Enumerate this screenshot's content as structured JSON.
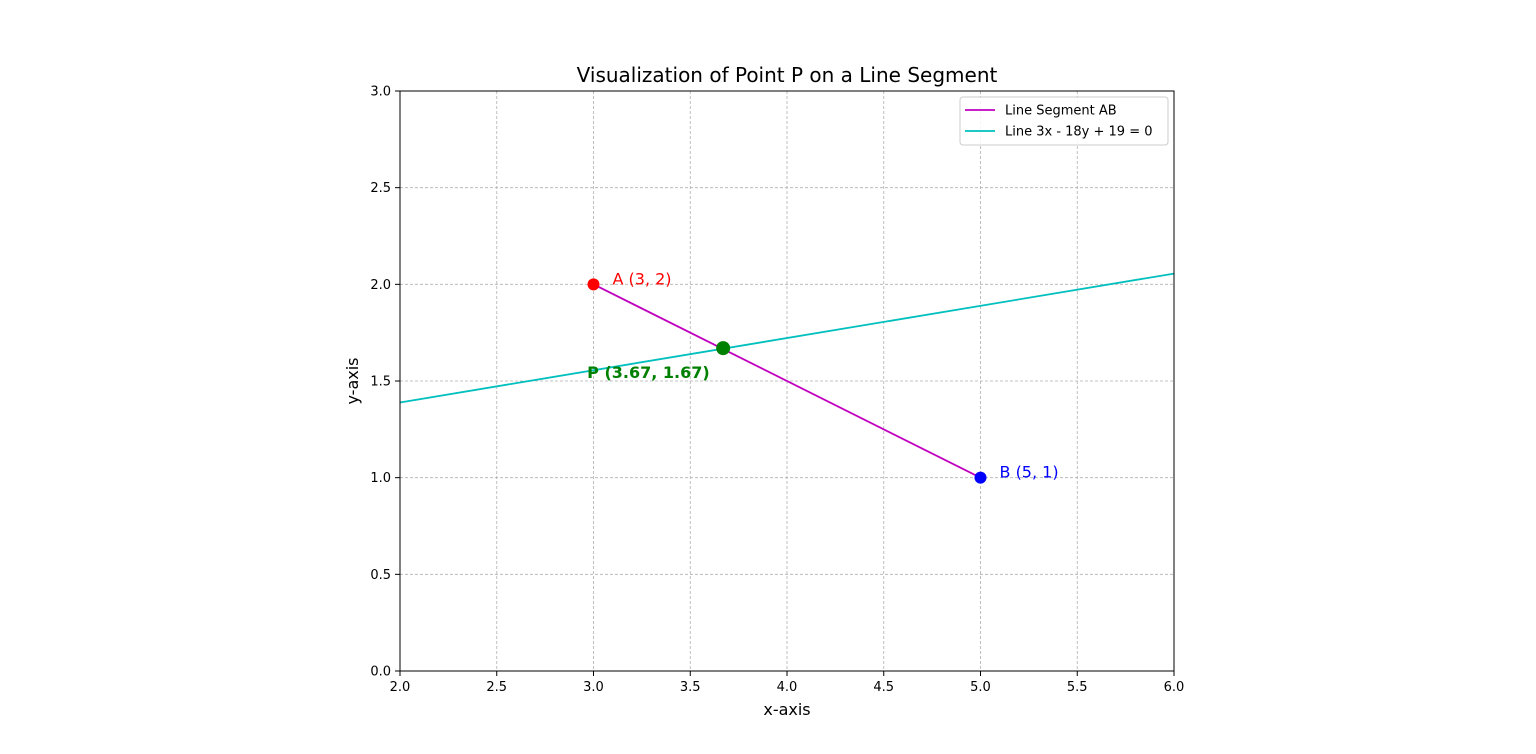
{
  "chart_data": {
    "type": "line",
    "title": "Visualization of Point P on a Line Segment",
    "xlabel": "x-axis",
    "ylabel": "y-axis",
    "xlim": [
      2.0,
      6.0
    ],
    "ylim": [
      0.0,
      3.0
    ],
    "xticks": [
      2.0,
      2.5,
      3.0,
      3.5,
      4.0,
      4.5,
      5.0,
      5.5,
      6.0
    ],
    "yticks": [
      0.0,
      0.5,
      1.0,
      1.5,
      2.0,
      2.5,
      3.0
    ],
    "xtick_labels": [
      "2.0",
      "2.5",
      "3.0",
      "3.5",
      "4.0",
      "4.5",
      "5.0",
      "5.5",
      "6.0"
    ],
    "ytick_labels": [
      "0.0",
      "0.5",
      "1.0",
      "1.5",
      "2.0",
      "2.5",
      "3.0"
    ],
    "grid": true,
    "legend_position": "upper right",
    "series": [
      {
        "name": "Line Segment AB",
        "color": "#bf00bf",
        "x": [
          3,
          5
        ],
        "y": [
          2,
          1
        ]
      },
      {
        "name": "Line 3x - 18y + 19 = 0",
        "color": "#00bfbf",
        "x": [
          2,
          6
        ],
        "y": [
          1.3889,
          2.0556
        ]
      }
    ],
    "points": [
      {
        "id": "A",
        "x": 3,
        "y": 2,
        "color": "#ff0000",
        "label": "A (3, 2)"
      },
      {
        "id": "B",
        "x": 5,
        "y": 1,
        "color": "#0000ff",
        "label": "B (5, 1)"
      },
      {
        "id": "P",
        "x": 3.67,
        "y": 1.67,
        "color": "#008000",
        "label": "P (3.67, 1.67)"
      }
    ]
  }
}
